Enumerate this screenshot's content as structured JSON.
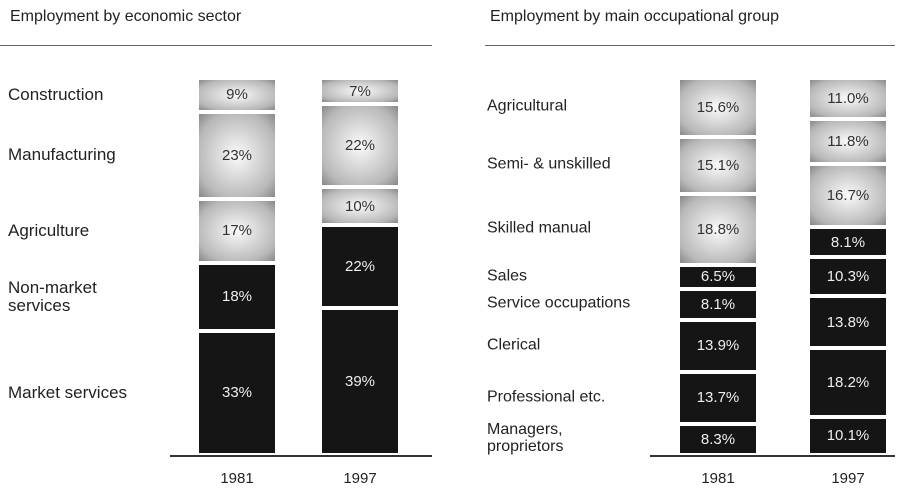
{
  "chart_data": [
    {
      "type": "bar",
      "stacked": true,
      "title": "Employment by economic sector",
      "categories": [
        "1981",
        "1997"
      ],
      "series": [
        {
          "name": "Market services",
          "color": "#151515",
          "values": [
            33,
            39
          ],
          "value_labels": [
            "33%",
            "39%"
          ]
        },
        {
          "name": "Non-market services",
          "color": "#151515",
          "values": [
            18,
            22
          ],
          "value_labels": [
            "18%",
            "22%"
          ]
        },
        {
          "name": "Agriculture",
          "color": "#b8b8b8",
          "values": [
            17,
            10
          ],
          "value_labels": [
            "17%",
            "10%"
          ]
        },
        {
          "name": "Manufacturing",
          "color": "#b8b8b8",
          "values": [
            23,
            22
          ],
          "value_labels": [
            "23%",
            "22%"
          ]
        },
        {
          "name": "Construction",
          "color": "#b8b8b8",
          "values": [
            9,
            7
          ],
          "value_labels": [
            "9%",
            "7%"
          ]
        }
      ]
    },
    {
      "type": "bar",
      "stacked": true,
      "title": "Employment by main occupational group",
      "categories": [
        "1981",
        "1997"
      ],
      "series": [
        {
          "name": "Managers, proprietors",
          "color": "#151515",
          "values": [
            8.3,
            10.1
          ],
          "value_labels": [
            "8.3%",
            "10.1%"
          ]
        },
        {
          "name": "Professional etc.",
          "color": "#151515",
          "values": [
            13.7,
            18.2
          ],
          "value_labels": [
            "13.7%",
            "18.2%"
          ]
        },
        {
          "name": "Clerical",
          "color": "#151515",
          "values": [
            13.9,
            13.8
          ],
          "value_labels": [
            "13.9%",
            "13.8%"
          ]
        },
        {
          "name": "Service occupations",
          "color": "#151515",
          "values": [
            8.1,
            10.3
          ],
          "value_labels": [
            "8.1%",
            "10.3%"
          ]
        },
        {
          "name": "Sales",
          "color": "#151515",
          "values": [
            6.5,
            8.1
          ],
          "value_labels": [
            "6.5%",
            "8.1%"
          ]
        },
        {
          "name": "Skilled manual",
          "color": "#b8b8b8",
          "values": [
            18.8,
            16.7
          ],
          "value_labels": [
            "18.8%",
            "16.7%"
          ]
        },
        {
          "name": "Semi- & unskilled",
          "color": "#b8b8b8",
          "values": [
            15.1,
            11.8
          ],
          "value_labels": [
            "15.1%",
            "11.8%"
          ]
        },
        {
          "name": "Agricultural",
          "color": "#b8b8b8",
          "values": [
            15.6,
            11.0
          ],
          "value_labels": [
            "15.6%",
            "11.0%"
          ]
        }
      ]
    }
  ]
}
